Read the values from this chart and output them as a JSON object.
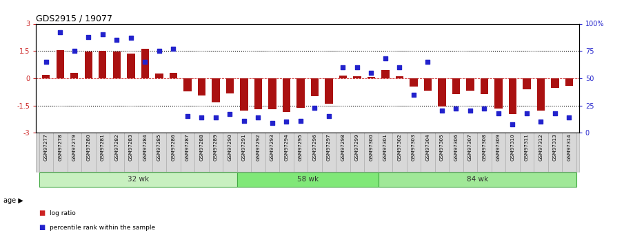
{
  "title": "GDS2915 / 19077",
  "samples": [
    "GSM97277",
    "GSM97278",
    "GSM97279",
    "GSM97280",
    "GSM97281",
    "GSM97282",
    "GSM97283",
    "GSM97284",
    "GSM97285",
    "GSM97286",
    "GSM97287",
    "GSM97288",
    "GSM97289",
    "GSM97290",
    "GSM97291",
    "GSM97292",
    "GSM97293",
    "GSM97294",
    "GSM97295",
    "GSM97296",
    "GSM97297",
    "GSM97298",
    "GSM97299",
    "GSM97300",
    "GSM97301",
    "GSM97302",
    "GSM97303",
    "GSM97304",
    "GSM97305",
    "GSM97306",
    "GSM97307",
    "GSM97308",
    "GSM97309",
    "GSM97310",
    "GSM97311",
    "GSM97312",
    "GSM97313",
    "GSM97314"
  ],
  "log_ratio": [
    0.2,
    1.55,
    0.3,
    1.45,
    1.52,
    1.45,
    1.35,
    1.62,
    0.25,
    0.3,
    -0.72,
    -0.95,
    -1.32,
    -0.85,
    -1.78,
    -1.72,
    -1.72,
    -1.87,
    -1.62,
    -0.97,
    -1.42,
    0.15,
    0.12,
    0.07,
    0.45,
    0.12,
    -0.45,
    -0.67,
    -1.57,
    -0.87,
    -0.67,
    -0.87,
    -1.67,
    -1.97,
    -0.62,
    -1.77,
    -0.52,
    -0.42
  ],
  "percentile": [
    65,
    92,
    75,
    88,
    90,
    85,
    87,
    65,
    75,
    77,
    15,
    14,
    14,
    17,
    11,
    14,
    9,
    10,
    11,
    23,
    15,
    60,
    60,
    55,
    68,
    60,
    35,
    65,
    20,
    22,
    20,
    22,
    18,
    8,
    18,
    10,
    18,
    14
  ],
  "groups": [
    {
      "label": "32 wk",
      "start": 0,
      "end": 14,
      "color": "#c8f0c0"
    },
    {
      "label": "58 wk",
      "start": 14,
      "end": 24,
      "color": "#80e878"
    },
    {
      "label": "84 wk",
      "start": 24,
      "end": 38,
      "color": "#a0e898"
    }
  ],
  "bar_color": "#aa1111",
  "dot_color": "#2222cc",
  "ylim": [
    -3,
    3
  ],
  "y2lim": [
    0,
    100
  ],
  "yticks": [
    -3,
    -1.5,
    0,
    1.5,
    3
  ],
  "y2ticks": [
    0,
    25,
    50,
    75,
    100
  ],
  "y2ticklabels": [
    "0",
    "25",
    "50",
    "75",
    "100%"
  ],
  "dotted_line_y": [
    1.5,
    -1.5
  ],
  "zero_line_color": "#cc2222",
  "background_color": "#ffffff",
  "legend_bar_color": "#cc2222",
  "legend_dot_color": "#2222cc",
  "label_bg": "#d8d8d8",
  "group_border_color": "#44aa44",
  "group_text_color": "#333333"
}
